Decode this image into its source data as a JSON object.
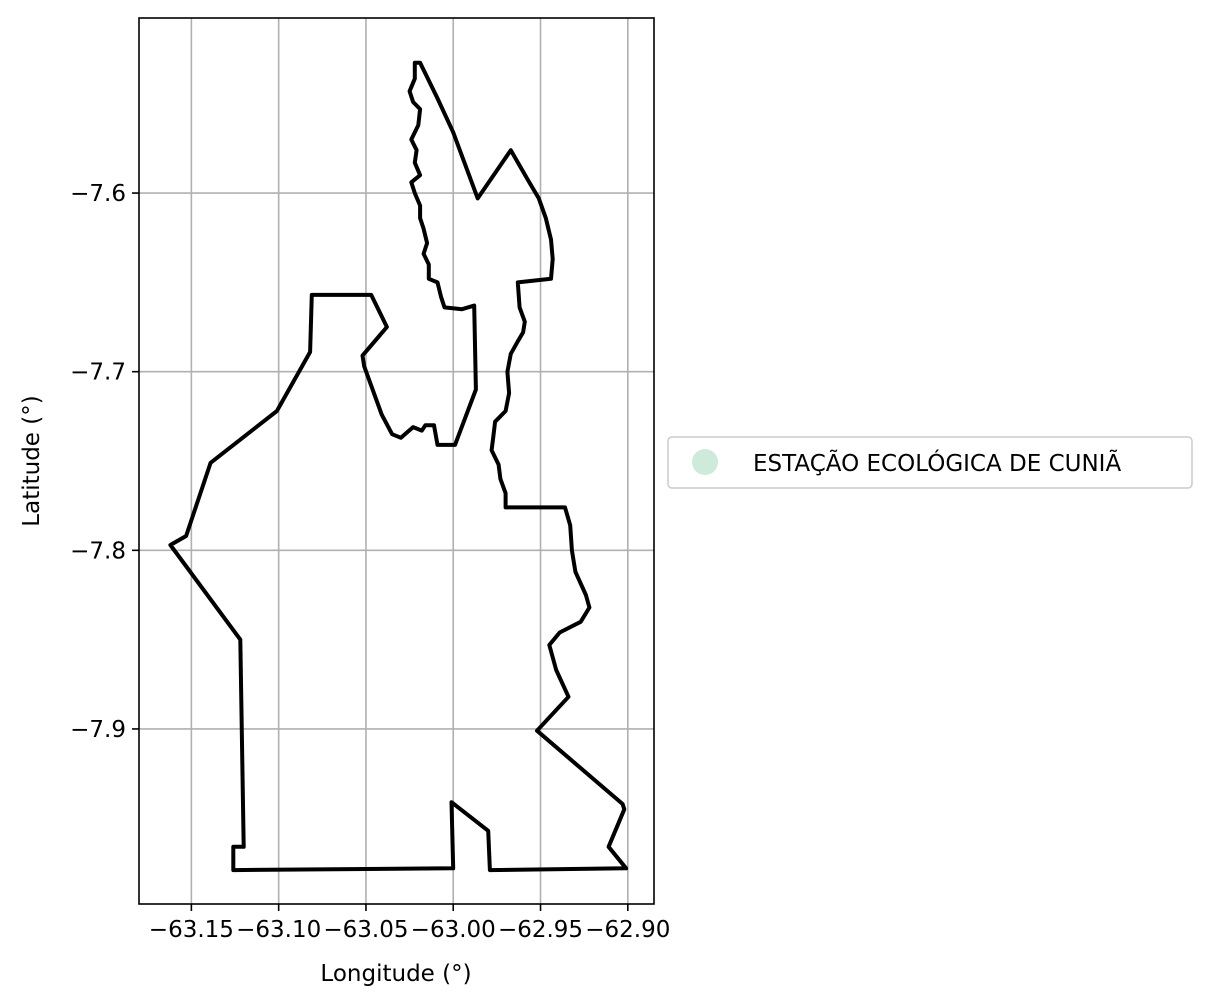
{
  "chart_data": {
    "type": "map",
    "xlabel": "Longitude (°)",
    "ylabel": "Latitude (°)",
    "xlim": [
      -63.18,
      -62.885
    ],
    "ylim": [
      -7.998,
      -7.502
    ],
    "grid": true,
    "x_ticks": [
      {
        "value": -63.15,
        "label": "−63.15"
      },
      {
        "value": -63.1,
        "label": "−63.10"
      },
      {
        "value": -63.05,
        "label": "−63.05"
      },
      {
        "value": -63.0,
        "label": "−63.00"
      },
      {
        "value": -62.95,
        "label": "−62.95"
      },
      {
        "value": -62.9,
        "label": "−62.90"
      }
    ],
    "y_ticks": [
      {
        "value": -7.6,
        "label": "−7.6"
      },
      {
        "value": -7.7,
        "label": "−7.7"
      },
      {
        "value": -7.8,
        "label": "−7.8"
      },
      {
        "value": -7.9,
        "label": "−7.9"
      }
    ],
    "legend": {
      "placement": "center-right outside",
      "entries": [
        {
          "label": "ESTAÇÃO ECOLÓGICA DE CUNIÃ",
          "color": "#cdeadb"
        }
      ]
    },
    "boundary_color": "#000000",
    "boundary": [
      [
        -63.019,
        -7.527
      ],
      [
        -63.022,
        -7.527
      ],
      [
        -63.022,
        -7.536
      ],
      [
        -63.025,
        -7.543
      ],
      [
        -63.023,
        -7.549
      ],
      [
        -63.019,
        -7.553
      ],
      [
        -63.02,
        -7.562
      ],
      [
        -63.024,
        -7.57
      ],
      [
        -63.021,
        -7.576
      ],
      [
        -63.022,
        -7.583
      ],
      [
        -63.019,
        -7.59
      ],
      [
        -63.024,
        -7.594
      ],
      [
        -63.022,
        -7.6
      ],
      [
        -63.019,
        -7.607
      ],
      [
        -63.019,
        -7.614
      ],
      [
        -63.017,
        -7.62
      ],
      [
        -63.015,
        -7.628
      ],
      [
        -63.017,
        -7.634
      ],
      [
        -63.014,
        -7.64
      ],
      [
        -63.014,
        -7.648
      ],
      [
        -63.009,
        -7.65
      ],
      [
        -63.007,
        -7.658
      ],
      [
        -63.005,
        -7.664
      ],
      [
        -62.995,
        -7.665
      ],
      [
        -62.988,
        -7.663
      ],
      [
        -62.987,
        -7.71
      ],
      [
        -62.999,
        -7.741
      ],
      [
        -63.009,
        -7.741
      ],
      [
        -63.011,
        -7.73
      ],
      [
        -63.016,
        -7.73
      ],
      [
        -63.018,
        -7.733
      ],
      [
        -63.023,
        -7.731
      ],
      [
        -63.03,
        -7.737
      ],
      [
        -63.035,
        -7.735
      ],
      [
        -63.041,
        -7.724
      ],
      [
        -63.051,
        -7.697
      ],
      [
        -63.052,
        -7.691
      ],
      [
        -63.038,
        -7.675
      ],
      [
        -63.047,
        -7.657
      ],
      [
        -63.081,
        -7.657
      ],
      [
        -63.082,
        -7.689
      ],
      [
        -63.101,
        -7.722
      ],
      [
        -63.139,
        -7.751
      ],
      [
        -63.153,
        -7.792
      ],
      [
        -63.162,
        -7.797
      ],
      [
        -63.122,
        -7.85
      ],
      [
        -63.12,
        -7.966
      ],
      [
        -63.126,
        -7.966
      ],
      [
        -63.126,
        -7.979
      ],
      [
        -63.0,
        -7.978
      ],
      [
        -63.001,
        -7.941
      ],
      [
        -62.98,
        -7.957
      ],
      [
        -62.979,
        -7.979
      ],
      [
        -62.901,
        -7.978
      ],
      [
        -62.911,
        -7.966
      ],
      [
        -62.902,
        -7.945
      ],
      [
        -62.903,
        -7.942
      ],
      [
        -62.952,
        -7.901
      ],
      [
        -62.934,
        -7.882
      ],
      [
        -62.941,
        -7.867
      ],
      [
        -62.945,
        -7.853
      ],
      [
        -62.939,
        -7.846
      ],
      [
        -62.927,
        -7.84
      ],
      [
        -62.922,
        -7.832
      ],
      [
        -62.924,
        -7.825
      ],
      [
        -62.93,
        -7.812
      ],
      [
        -62.932,
        -7.8
      ],
      [
        -62.933,
        -7.786
      ],
      [
        -62.936,
        -7.776
      ],
      [
        -62.97,
        -7.776
      ],
      [
        -62.97,
        -7.768
      ],
      [
        -62.973,
        -7.76
      ],
      [
        -62.974,
        -7.752
      ],
      [
        -62.978,
        -7.744
      ],
      [
        -62.977,
        -7.736
      ],
      [
        -62.976,
        -7.728
      ],
      [
        -62.97,
        -7.722
      ],
      [
        -62.968,
        -7.712
      ],
      [
        -62.969,
        -7.7
      ],
      [
        -62.967,
        -7.69
      ],
      [
        -62.963,
        -7.683
      ],
      [
        -62.96,
        -7.678
      ],
      [
        -62.959,
        -7.672
      ],
      [
        -62.962,
        -7.664
      ],
      [
        -62.963,
        -7.65
      ],
      [
        -62.944,
        -7.648
      ],
      [
        -62.943,
        -7.637
      ],
      [
        -62.944,
        -7.626
      ],
      [
        -62.947,
        -7.614
      ],
      [
        -62.951,
        -7.603
      ],
      [
        -62.957,
        -7.593
      ],
      [
        -62.967,
        -7.576
      ],
      [
        -62.986,
        -7.603
      ],
      [
        -63.0,
        -7.566
      ],
      [
        -63.009,
        -7.547
      ],
      [
        -63.019,
        -7.527
      ]
    ]
  }
}
